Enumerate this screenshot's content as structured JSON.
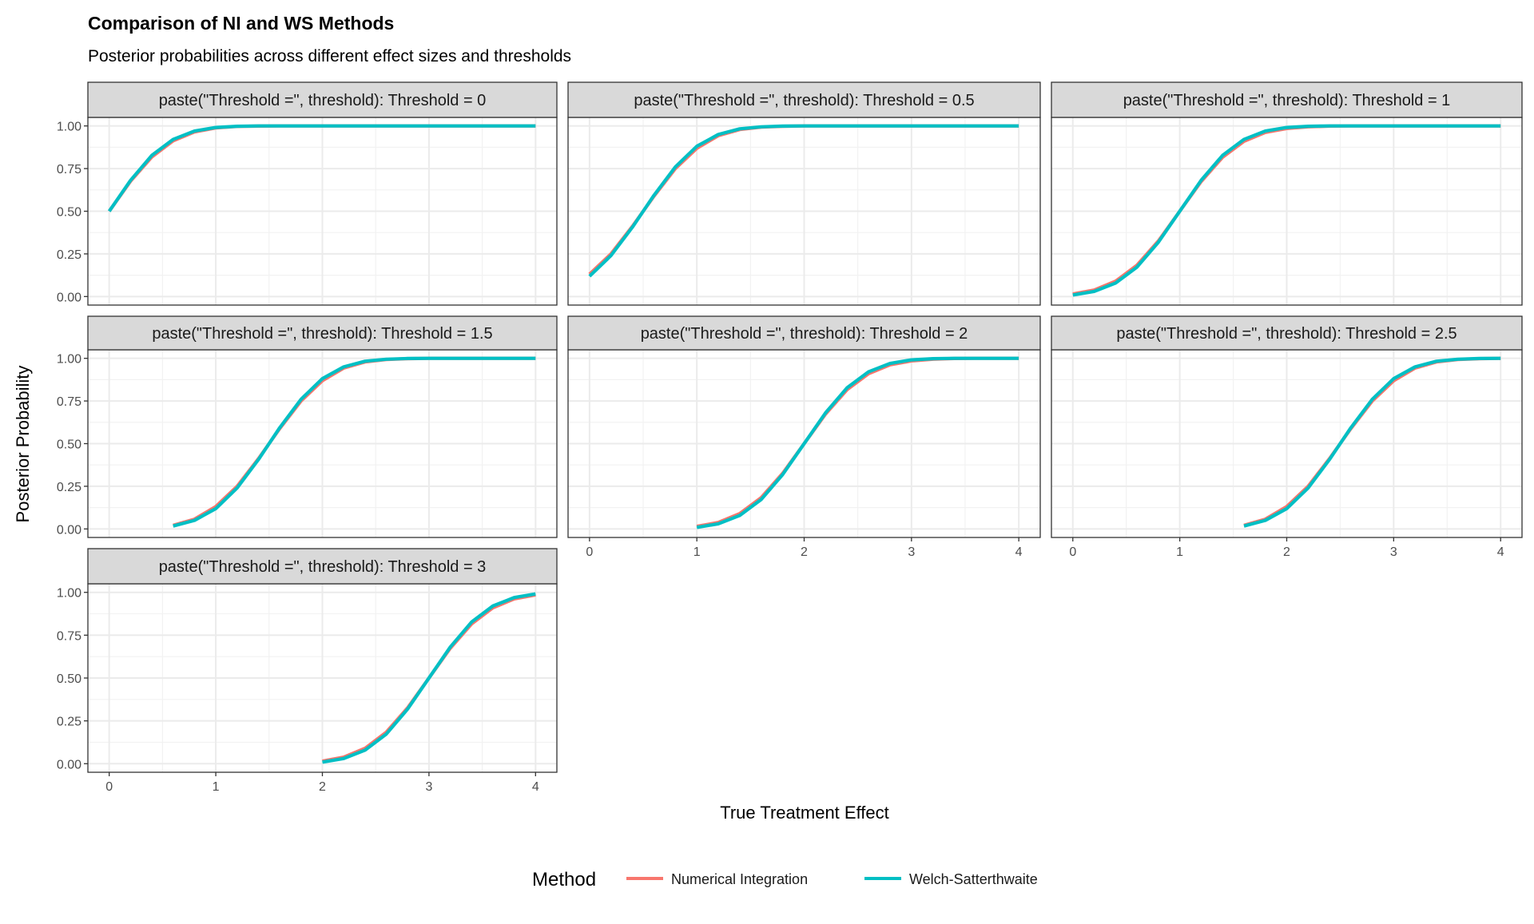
{
  "chart_data": {
    "type": "line",
    "title": "Comparison of NI and WS Methods",
    "subtitle": "Posterior probabilities across different effect sizes and thresholds",
    "xlabel": "True Treatment Effect",
    "ylabel": "Posterior Probability",
    "xlim": [
      0,
      4
    ],
    "ylim": [
      0,
      1
    ],
    "x_ticks": [
      "0",
      "1",
      "2",
      "3",
      "4"
    ],
    "y_ticks": [
      "0.00",
      "0.25",
      "0.50",
      "0.75",
      "1.00"
    ],
    "grid": true,
    "legend": {
      "title": "Method",
      "position": "bottom",
      "entries": [
        {
          "name": "Numerical Integration",
          "color": "#F8766D"
        },
        {
          "name": "Welch-Satterthwaite",
          "color": "#00BFC4"
        }
      ]
    },
    "panels": [
      {
        "strip": "paste(\"Threshold =\", threshold): Threshold = 0",
        "threshold": 0,
        "x_start": 0,
        "x_step": 0.2,
        "series": [
          {
            "name": "Numerical Integration",
            "values": [
              0.5,
              0.676,
              0.818,
              0.913,
              0.965,
              0.988,
              0.997,
              0.999,
              1,
              1,
              1,
              1,
              1,
              1,
              1,
              1,
              1,
              1,
              1,
              1,
              1
            ]
          },
          {
            "name": "Welch-Satterthwaite",
            "values": [
              0.5,
              0.681,
              0.827,
              0.921,
              0.97,
              0.991,
              0.998,
              1,
              1,
              1,
              1,
              1,
              1,
              1,
              1,
              1,
              1,
              1,
              1,
              1,
              1
            ]
          }
        ]
      },
      {
        "strip": "paste(\"Threshold =\", threshold): Threshold = 0.5",
        "threshold": 0.5,
        "x_start": 0,
        "x_step": 0.2,
        "series": [
          {
            "name": "Numerical Integration",
            "values": [
              0.131,
              0.25,
              0.412,
              0.588,
              0.75,
              0.869,
              0.943,
              0.979,
              0.993,
              0.998,
              1,
              1,
              1,
              1,
              1,
              1,
              1,
              1,
              1,
              1,
              1
            ]
          },
          {
            "name": "Welch-Satterthwaite",
            "values": [
              0.119,
              0.24,
              0.407,
              0.593,
              0.76,
              0.881,
              0.95,
              0.983,
              0.995,
              0.999,
              1,
              1,
              1,
              1,
              1,
              1,
              1,
              1,
              1,
              1,
              1
            ]
          }
        ]
      },
      {
        "strip": "paste(\"Threshold =\", threshold): Threshold = 1",
        "threshold": 1,
        "x_start": 0,
        "x_step": 0.2,
        "series": [
          {
            "name": "Numerical Integration",
            "values": [
              0.015,
              0.038,
              0.09,
              0.184,
              0.326,
              0.5,
              0.674,
              0.816,
              0.91,
              0.962,
              0.985,
              0.995,
              0.999,
              1,
              1,
              1,
              1,
              1,
              1,
              1,
              1
            ]
          },
          {
            "name": "Welch-Satterthwaite",
            "values": [
              0.009,
              0.03,
              0.079,
              0.173,
              0.319,
              0.5,
              0.681,
              0.827,
              0.921,
              0.97,
              0.991,
              0.998,
              1,
              1,
              1,
              1,
              1,
              1,
              1,
              1,
              1
            ]
          }
        ]
      },
      {
        "strip": "paste(\"Threshold =\", threshold): Threshold = 1.5",
        "threshold": 1.5,
        "x_start": 0.6,
        "x_step": 0.2,
        "series": [
          {
            "name": "Numerical Integration",
            "values": [
              0.021,
              0.057,
              0.131,
              0.25,
              0.412,
              0.588,
              0.75,
              0.869,
              0.943,
              0.979,
              0.993,
              0.998,
              1,
              1,
              1,
              1,
              1,
              1
            ]
          },
          {
            "name": "Welch-Satterthwaite",
            "values": [
              0.017,
              0.05,
              0.119,
              0.24,
              0.407,
              0.593,
              0.76,
              0.881,
              0.95,
              0.983,
              0.995,
              0.999,
              1,
              1,
              1,
              1,
              1,
              1
            ]
          }
        ]
      },
      {
        "strip": "paste(\"Threshold =\", threshold): Threshold = 2",
        "threshold": 2,
        "x_start": 1.0,
        "x_step": 0.2,
        "series": [
          {
            "name": "Numerical Integration",
            "values": [
              0.015,
              0.038,
              0.09,
              0.184,
              0.326,
              0.5,
              0.674,
              0.816,
              0.91,
              0.962,
              0.985,
              0.995,
              0.999,
              1,
              1,
              1
            ]
          },
          {
            "name": "Welch-Satterthwaite",
            "values": [
              0.009,
              0.03,
              0.079,
              0.173,
              0.319,
              0.5,
              0.681,
              0.827,
              0.921,
              0.97,
              0.991,
              0.998,
              1,
              1,
              1,
              1
            ]
          }
        ]
      },
      {
        "strip": "paste(\"Threshold =\", threshold): Threshold = 2.5",
        "threshold": 2.5,
        "x_start": 1.6,
        "x_step": 0.2,
        "series": [
          {
            "name": "Numerical Integration",
            "values": [
              0.021,
              0.057,
              0.131,
              0.25,
              0.412,
              0.588,
              0.75,
              0.869,
              0.943,
              0.979,
              0.993,
              0.998,
              1
            ]
          },
          {
            "name": "Welch-Satterthwaite",
            "values": [
              0.017,
              0.05,
              0.119,
              0.24,
              0.407,
              0.593,
              0.76,
              0.881,
              0.95,
              0.983,
              0.995,
              0.999,
              1
            ]
          }
        ]
      },
      {
        "strip": "paste(\"Threshold =\", threshold): Threshold = 3",
        "threshold": 3,
        "x_start": 2.0,
        "x_step": 0.2,
        "series": [
          {
            "name": "Numerical Integration",
            "values": [
              0.015,
              0.038,
              0.09,
              0.184,
              0.326,
              0.5,
              0.674,
              0.816,
              0.91,
              0.962,
              0.985
            ]
          },
          {
            "name": "Welch-Satterthwaite",
            "values": [
              0.009,
              0.03,
              0.079,
              0.173,
              0.319,
              0.5,
              0.681,
              0.827,
              0.921,
              0.97,
              0.991
            ]
          }
        ]
      }
    ]
  }
}
